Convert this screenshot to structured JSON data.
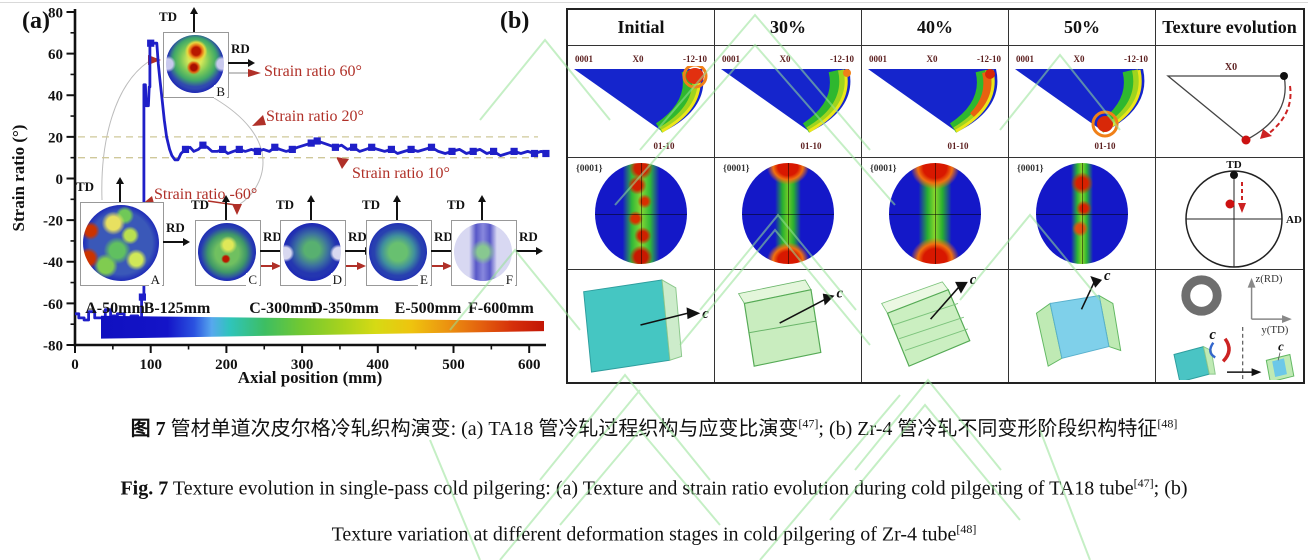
{
  "figure": {
    "panel_a_label": "(a)",
    "panel_b_label": "(b)"
  },
  "chart_data": {
    "type": "line",
    "xlabel": "Axial position (mm)",
    "ylabel": "Strain ratio (°)",
    "xlim": [
      0,
      640
    ],
    "ylim": [
      -80,
      80
    ],
    "x_ticks": [
      0,
      100,
      200,
      300,
      400,
      500,
      600
    ],
    "x_minor_ticks": [
      50,
      150,
      250,
      350,
      450,
      550
    ],
    "y_ticks": [
      -80,
      -60,
      -40,
      -20,
      0,
      20,
      40,
      60,
      80
    ],
    "y_minor_ticks": [
      -70,
      -50,
      -30,
      -10,
      10,
      30,
      50,
      70
    ],
    "grid": false,
    "reference_lines": [
      {
        "value": 20,
        "label": "Strain ratio 20°",
        "color": "#cfc89a"
      },
      {
        "value": 10,
        "label": "Strain ratio 10°",
        "color": "#cfc89a"
      }
    ],
    "series": [
      {
        "name": "Strain ratio",
        "color": "#1f1fc8",
        "points": [
          [
            0,
            -65
          ],
          [
            5,
            -65
          ],
          [
            5,
            -67
          ],
          [
            12,
            -67
          ],
          [
            12,
            -68
          ],
          [
            18,
            -68
          ],
          [
            18,
            -64
          ],
          [
            26,
            -64
          ],
          [
            26,
            -67
          ],
          [
            36,
            -67
          ],
          [
            40,
            -67
          ],
          [
            40,
            -63
          ],
          [
            47,
            -63
          ],
          [
            47,
            -66
          ],
          [
            56,
            -66
          ],
          [
            56,
            -65
          ],
          [
            65,
            -65
          ],
          [
            65,
            -67
          ],
          [
            74,
            -67
          ],
          [
            74,
            -66
          ],
          [
            83,
            -66
          ],
          [
            83,
            -67
          ],
          [
            88,
            -67
          ],
          [
            88,
            -57
          ],
          [
            91,
            -57
          ],
          [
            91,
            45
          ],
          [
            93,
            45
          ],
          [
            94,
            35
          ],
          [
            97,
            35
          ],
          [
            98,
            44
          ],
          [
            99,
            44
          ],
          [
            99,
            65
          ],
          [
            108,
            65
          ],
          [
            110,
            55
          ],
          [
            112,
            48
          ],
          [
            115,
            38
          ],
          [
            118,
            28
          ],
          [
            121,
            20
          ],
          [
            125,
            14
          ],
          [
            128,
            11
          ],
          [
            132,
            9
          ],
          [
            136,
            9
          ],
          [
            140,
            12
          ],
          [
            146,
            14
          ],
          [
            152,
            15
          ],
          [
            157,
            13
          ],
          [
            163,
            14
          ],
          [
            169,
            16
          ],
          [
            175,
            15
          ],
          [
            181,
            13
          ],
          [
            188,
            13
          ],
          [
            195,
            14
          ],
          [
            202,
            12
          ],
          [
            209,
            13
          ],
          [
            217,
            14
          ],
          [
            225,
            13
          ],
          [
            233,
            14
          ],
          [
            241,
            13
          ],
          [
            249,
            14
          ],
          [
            257,
            13
          ],
          [
            264,
            15
          ],
          [
            271,
            14
          ],
          [
            279,
            13
          ],
          [
            287,
            14
          ],
          [
            294,
            15
          ],
          [
            303,
            16
          ],
          [
            312,
            17
          ],
          [
            320,
            18
          ],
          [
            328,
            17
          ],
          [
            336,
            16
          ],
          [
            344,
            15
          ],
          [
            352,
            16
          ],
          [
            360,
            14
          ],
          [
            368,
            15
          ],
          [
            376,
            13
          ],
          [
            384,
            14
          ],
          [
            392,
            15
          ],
          [
            400,
            14
          ],
          [
            409,
            13
          ],
          [
            418,
            14
          ],
          [
            426,
            12
          ],
          [
            435,
            13
          ],
          [
            444,
            14
          ],
          [
            453,
            13
          ],
          [
            462,
            14
          ],
          [
            471,
            15
          ],
          [
            480,
            13
          ],
          [
            489,
            12
          ],
          [
            498,
            13
          ],
          [
            508,
            14
          ],
          [
            517,
            12
          ],
          [
            526,
            13
          ],
          [
            535,
            14
          ],
          [
            544,
            12
          ],
          [
            553,
            13
          ],
          [
            562,
            11
          ],
          [
            571,
            12
          ],
          [
            580,
            13
          ],
          [
            589,
            12
          ],
          [
            598,
            13
          ],
          [
            607,
            12
          ],
          [
            616,
            13
          ],
          [
            622,
            12
          ]
        ],
        "marker_points": [
          [
            89,
            -57
          ],
          [
            100,
            65
          ],
          [
            146,
            14
          ],
          [
            169,
            16
          ],
          [
            195,
            14
          ],
          [
            217,
            14
          ],
          [
            241,
            13
          ],
          [
            264,
            15
          ],
          [
            287,
            14
          ],
          [
            312,
            17
          ],
          [
            320,
            18
          ],
          [
            344,
            15
          ],
          [
            368,
            15
          ],
          [
            392,
            15
          ],
          [
            418,
            14
          ],
          [
            444,
            14
          ],
          [
            471,
            15
          ],
          [
            498,
            13
          ],
          [
            526,
            13
          ],
          [
            553,
            13
          ],
          [
            580,
            13
          ],
          [
            607,
            12
          ],
          [
            622,
            12
          ]
        ]
      }
    ],
    "annotations": [
      {
        "label": "Strain ratio 60°"
      },
      {
        "label": "Strain ratio 20°"
      },
      {
        "label": "Strain ratio 10°"
      },
      {
        "label": "Strain ratio -60°"
      }
    ],
    "stage_labels": [
      "A-50mm",
      "B-125mm",
      "C-300mm",
      "D-350mm",
      "E-500mm",
      "F-600mm"
    ],
    "insets": [
      "A",
      "B",
      "C",
      "D",
      "E",
      "F"
    ],
    "inset_axes": {
      "vertical": "TD",
      "horizontal": "RD"
    },
    "tube_gradient_colors": [
      "#1010c0",
      "#2a52e0",
      "#57a8ee",
      "#2fc4bc",
      "#3dbe62",
      "#a5d21e",
      "#eec40e",
      "#ec9410",
      "#e35f0e",
      "#c21606"
    ]
  },
  "panel_b": {
    "headers": [
      "Initial",
      "30%",
      "40%",
      "50%",
      "Texture evolution"
    ],
    "ipf": {
      "corner_left": "0001",
      "corner_top": "X0",
      "corner_right": "-12-10",
      "corner_bottom": "01-10"
    },
    "pf_label": "{0001}",
    "c_label": "c",
    "evolution": {
      "ipf_top": "X0",
      "pf_top": "TD",
      "pf_right": "AD",
      "axis_vertical": "z(RD)",
      "axis_horizontal": "y(TD)",
      "c_label": "c"
    }
  },
  "caption": {
    "zh_prefix": "图 7",
    "zh_part1": " 管材单道次皮尔格冷轧织构演变: (a) TA18 管冷轧过程织构与应变比演变",
    "zh_sup1": "[47]",
    "zh_part2": "; (b) Zr-4 管冷轧不同变形阶段织构特征",
    "zh_sup2": "[48]",
    "en_prefix": "Fig. 7",
    "en_part1": " Texture evolution in single-pass cold pilgering: (a) Texture and strain ratio evolution during cold pilgering of TA18 tube",
    "en_sup1": "[47]",
    "en_part2": "; (b)",
    "en_line2": "Texture variation at different deformation stages in cold pilgering of Zr-4 tube",
    "en_sup2": "[48]"
  }
}
